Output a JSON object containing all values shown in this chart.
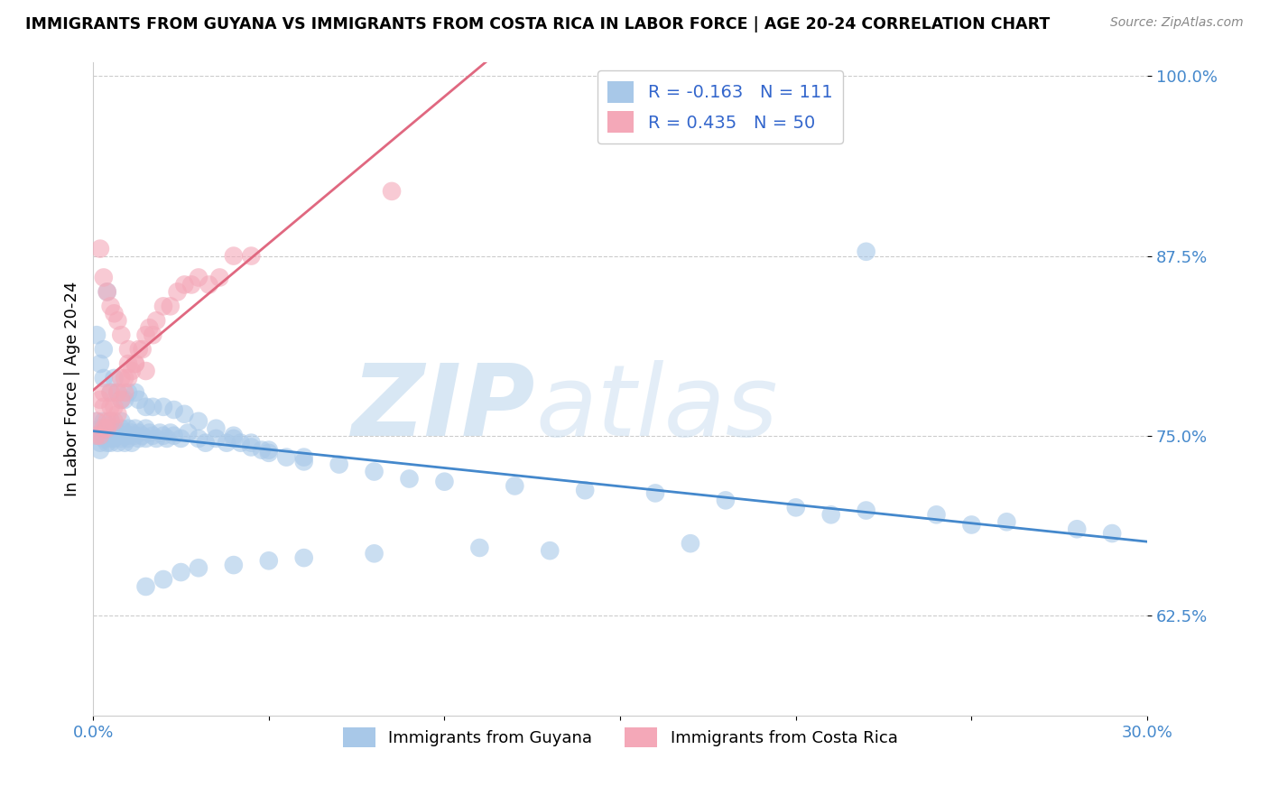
{
  "title": "IMMIGRANTS FROM GUYANA VS IMMIGRANTS FROM COSTA RICA IN LABOR FORCE | AGE 20-24 CORRELATION CHART",
  "source_text": "Source: ZipAtlas.com",
  "ylabel": "In Labor Force | Age 20-24",
  "xlim": [
    0.0,
    0.3
  ],
  "ylim": [
    0.555,
    1.01
  ],
  "xticks": [
    0.0,
    0.05,
    0.1,
    0.15,
    0.2,
    0.25,
    0.3
  ],
  "xticklabels": [
    "0.0%",
    "",
    "",
    "",
    "",
    "",
    "30.0%"
  ],
  "ytick_positions": [
    0.625,
    0.75,
    0.875,
    1.0
  ],
  "ytick_labels": [
    "62.5%",
    "75.0%",
    "87.5%",
    "100.0%"
  ],
  "blue_R": -0.163,
  "blue_N": 111,
  "pink_R": 0.435,
  "pink_N": 50,
  "blue_color": "#a8c8e8",
  "pink_color": "#f4a8b8",
  "blue_line_color": "#4488cc",
  "pink_line_color": "#e06880",
  "blue_scatter_x": [
    0.001,
    0.001,
    0.002,
    0.002,
    0.002,
    0.003,
    0.003,
    0.003,
    0.003,
    0.004,
    0.004,
    0.004,
    0.005,
    0.005,
    0.005,
    0.005,
    0.006,
    0.006,
    0.006,
    0.007,
    0.007,
    0.007,
    0.008,
    0.008,
    0.008,
    0.009,
    0.009,
    0.01,
    0.01,
    0.01,
    0.011,
    0.011,
    0.012,
    0.012,
    0.013,
    0.013,
    0.014,
    0.015,
    0.015,
    0.016,
    0.017,
    0.018,
    0.019,
    0.02,
    0.021,
    0.022,
    0.023,
    0.025,
    0.027,
    0.03,
    0.032,
    0.035,
    0.038,
    0.04,
    0.042,
    0.045,
    0.048,
    0.05,
    0.055,
    0.06,
    0.001,
    0.002,
    0.003,
    0.003,
    0.004,
    0.005,
    0.006,
    0.007,
    0.008,
    0.009,
    0.01,
    0.012,
    0.013,
    0.015,
    0.017,
    0.02,
    0.023,
    0.026,
    0.03,
    0.035,
    0.04,
    0.045,
    0.05,
    0.06,
    0.07,
    0.08,
    0.09,
    0.1,
    0.12,
    0.14,
    0.16,
    0.18,
    0.2,
    0.22,
    0.24,
    0.26,
    0.28,
    0.29,
    0.25,
    0.21,
    0.17,
    0.13,
    0.11,
    0.08,
    0.06,
    0.05,
    0.04,
    0.03,
    0.025,
    0.02,
    0.015
  ],
  "blue_scatter_y": [
    0.75,
    0.76,
    0.745,
    0.755,
    0.74,
    0.75,
    0.76,
    0.748,
    0.752,
    0.745,
    0.755,
    0.75,
    0.76,
    0.752,
    0.748,
    0.745,
    0.75,
    0.755,
    0.748,
    0.752,
    0.745,
    0.75,
    0.755,
    0.76,
    0.748,
    0.752,
    0.745,
    0.75,
    0.755,
    0.748,
    0.752,
    0.745,
    0.75,
    0.755,
    0.748,
    0.752,
    0.75,
    0.755,
    0.748,
    0.752,
    0.75,
    0.748,
    0.752,
    0.75,
    0.748,
    0.752,
    0.75,
    0.748,
    0.752,
    0.748,
    0.745,
    0.748,
    0.745,
    0.748,
    0.745,
    0.742,
    0.74,
    0.738,
    0.735,
    0.732,
    0.82,
    0.8,
    0.81,
    0.79,
    0.85,
    0.78,
    0.79,
    0.78,
    0.775,
    0.775,
    0.78,
    0.78,
    0.775,
    0.77,
    0.77,
    0.77,
    0.768,
    0.765,
    0.76,
    0.755,
    0.75,
    0.745,
    0.74,
    0.735,
    0.73,
    0.725,
    0.72,
    0.718,
    0.715,
    0.712,
    0.71,
    0.705,
    0.7,
    0.698,
    0.695,
    0.69,
    0.685,
    0.682,
    0.688,
    0.695,
    0.675,
    0.67,
    0.672,
    0.668,
    0.665,
    0.663,
    0.66,
    0.658,
    0.655,
    0.65,
    0.645
  ],
  "pink_scatter_x": [
    0.001,
    0.001,
    0.002,
    0.002,
    0.003,
    0.003,
    0.003,
    0.004,
    0.004,
    0.005,
    0.005,
    0.005,
    0.006,
    0.006,
    0.007,
    0.007,
    0.008,
    0.008,
    0.009,
    0.009,
    0.01,
    0.01,
    0.011,
    0.012,
    0.013,
    0.014,
    0.015,
    0.016,
    0.017,
    0.018,
    0.02,
    0.022,
    0.024,
    0.026,
    0.028,
    0.03,
    0.033,
    0.036,
    0.04,
    0.045,
    0.002,
    0.003,
    0.004,
    0.005,
    0.006,
    0.007,
    0.008,
    0.01,
    0.012,
    0.015
  ],
  "pink_scatter_y": [
    0.75,
    0.76,
    0.75,
    0.775,
    0.755,
    0.77,
    0.78,
    0.76,
    0.755,
    0.76,
    0.77,
    0.78,
    0.76,
    0.77,
    0.765,
    0.78,
    0.775,
    0.79,
    0.78,
    0.79,
    0.79,
    0.8,
    0.795,
    0.8,
    0.81,
    0.81,
    0.82,
    0.825,
    0.82,
    0.83,
    0.84,
    0.84,
    0.85,
    0.855,
    0.855,
    0.86,
    0.855,
    0.86,
    0.875,
    0.875,
    0.88,
    0.86,
    0.85,
    0.84,
    0.835,
    0.83,
    0.82,
    0.81,
    0.8,
    0.795
  ],
  "pink_extra_x": [
    0.085
  ],
  "pink_extra_y": [
    0.92
  ],
  "blue_extra_high_x": [
    0.22
  ],
  "blue_extra_high_y": [
    0.878
  ]
}
